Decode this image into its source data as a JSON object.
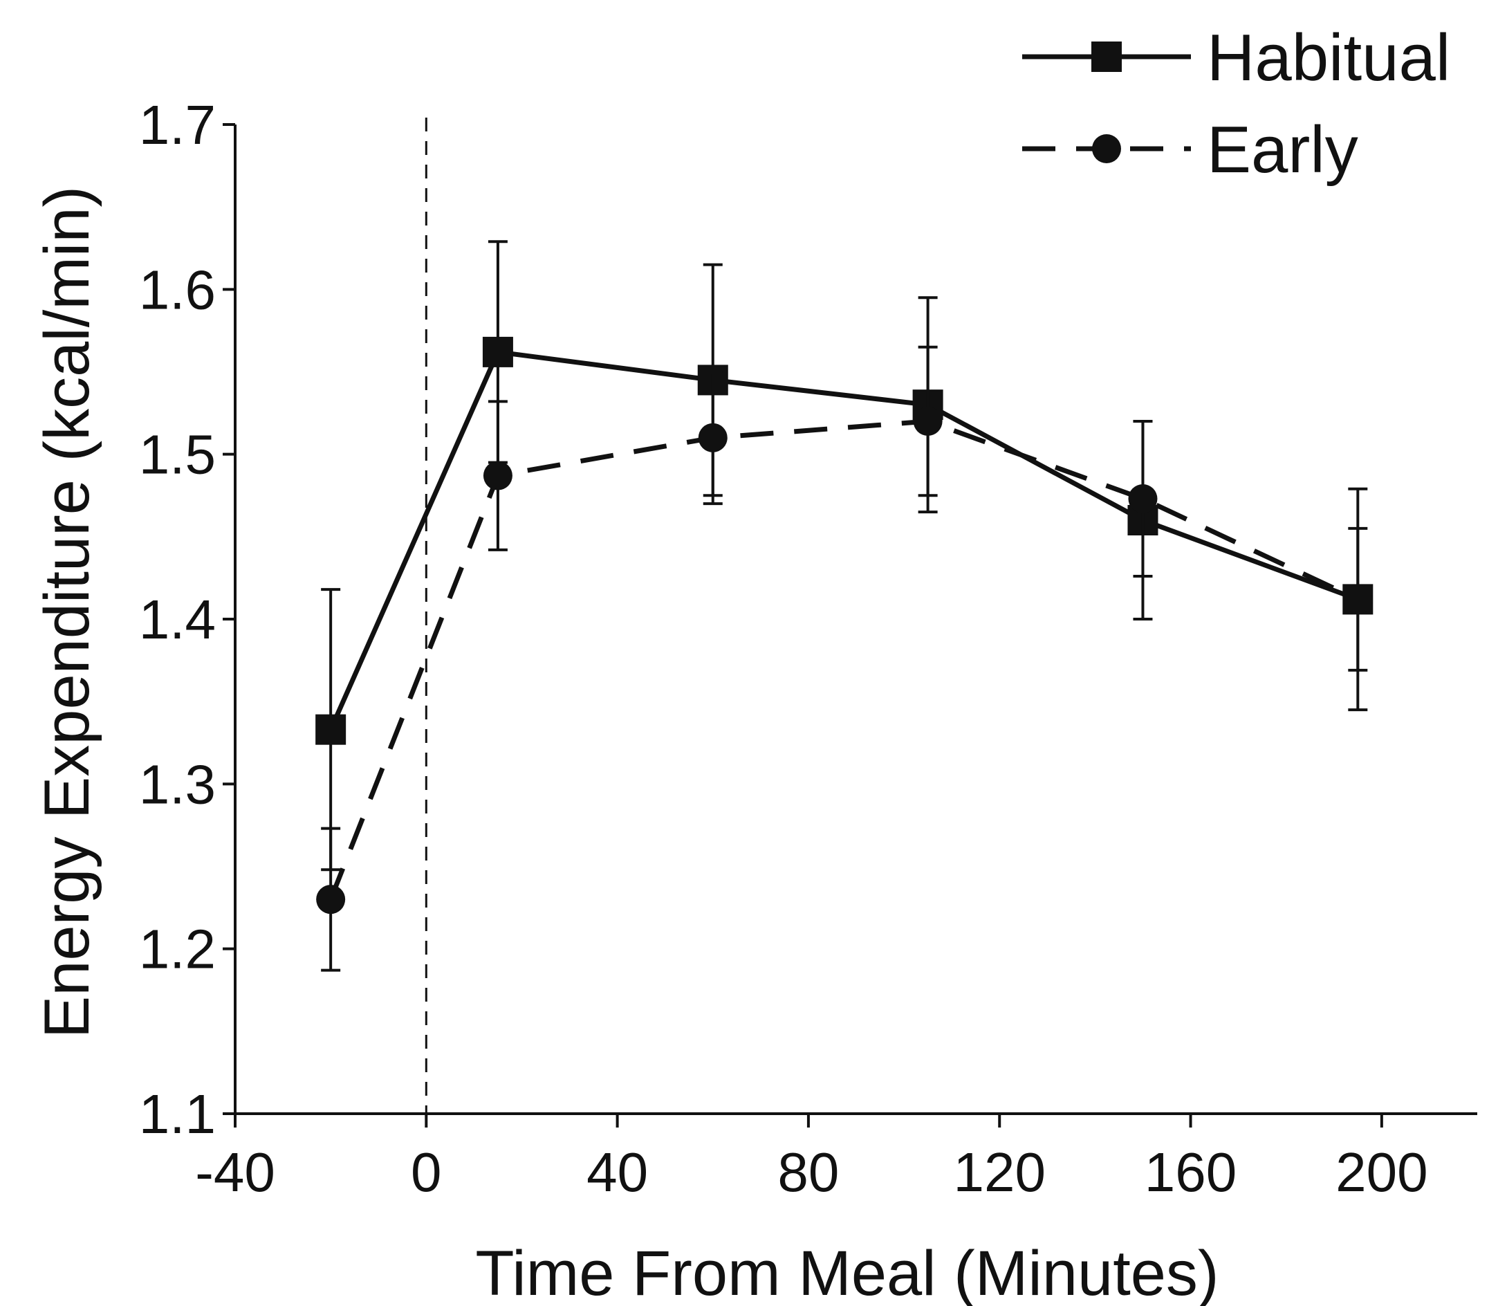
{
  "chart_data": {
    "type": "line",
    "title": "",
    "xlabel": "Time From Meal (Minutes)",
    "ylabel": "Energy Expenditure (kcal/min)",
    "xlim": [
      -40,
      220
    ],
    "ylim": [
      1.1,
      1.7
    ],
    "xticks": [
      -40,
      0,
      40,
      80,
      120,
      160,
      200
    ],
    "yticks": [
      1.1,
      1.2,
      1.3,
      1.4,
      1.5,
      1.6,
      1.7
    ],
    "xtick_labels": [
      "-40",
      "0",
      "40",
      "80",
      "120",
      "160",
      "200"
    ],
    "ytick_labels": [
      "1.1",
      "1.2",
      "1.3",
      "1.4",
      "1.5",
      "1.6",
      "1.7"
    ],
    "meal_marker_x": 0,
    "legend_position": "top-right",
    "series": [
      {
        "name": "Habitual",
        "style": "solid",
        "marker": "square",
        "x": [
          -20,
          15,
          60,
          105,
          150,
          195
        ],
        "y": [
          1.333,
          1.562,
          1.545,
          1.53,
          1.46,
          1.412
        ],
        "err": [
          0.085,
          0.067,
          0.07,
          0.065,
          0.06,
          0.067
        ]
      },
      {
        "name": "Early",
        "style": "dashed",
        "marker": "circle",
        "x": [
          -20,
          15,
          60,
          105,
          150,
          195
        ],
        "y": [
          1.23,
          1.487,
          1.51,
          1.52,
          1.473,
          1.412
        ],
        "err": [
          0.043,
          0.045,
          0.04,
          0.045,
          0.047,
          0.043
        ]
      }
    ],
    "colors": {
      "line": "#111111",
      "axis": "#111111"
    }
  }
}
